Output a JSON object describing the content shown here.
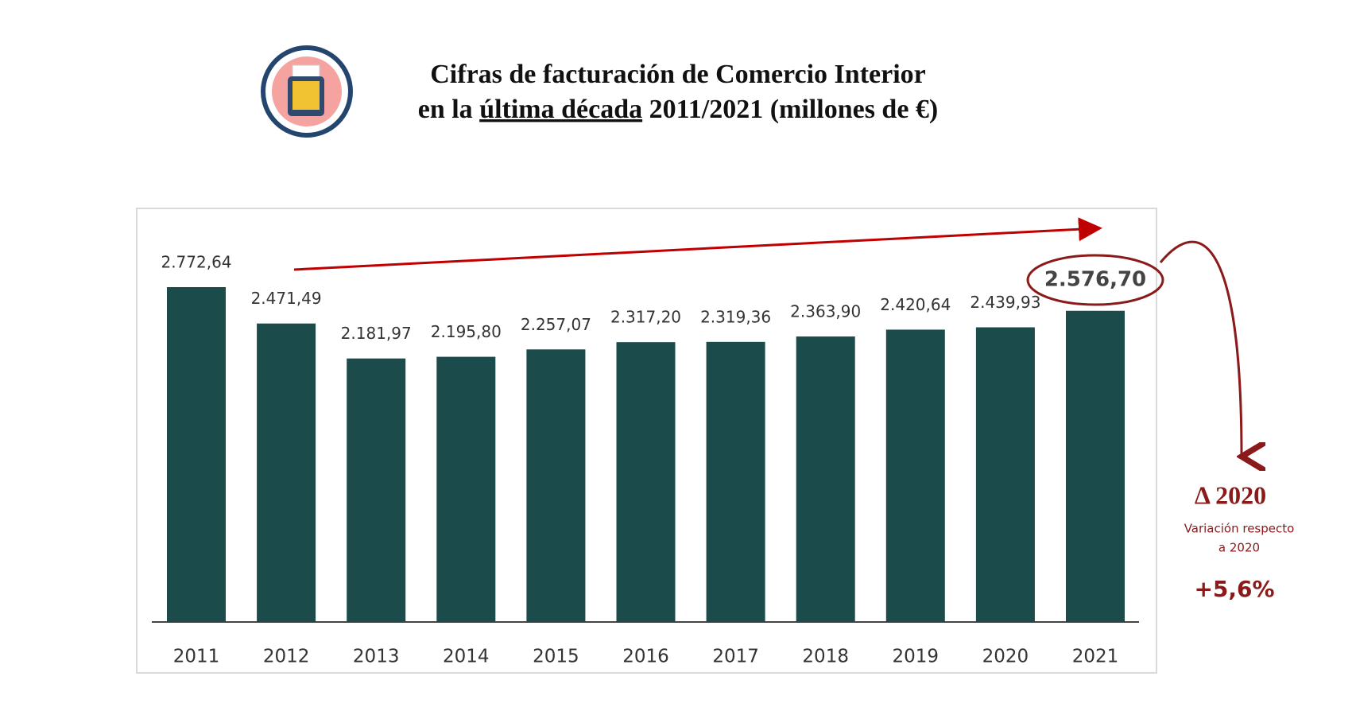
{
  "chart_data": {
    "type": "bar",
    "title_parts": [
      "Cifras de facturación de Comercio Interior",
      "en la",
      "última década",
      "2011/2021 (millones de €)"
    ],
    "categories": [
      "2011",
      "2012",
      "2013",
      "2014",
      "2015",
      "2016",
      "2017",
      "2018",
      "2019",
      "2020",
      "2021"
    ],
    "values": [
      2772.64,
      2471.49,
      2181.97,
      2195.8,
      2257.07,
      2317.2,
      2319.36,
      2363.9,
      2420.64,
      2439.93,
      2576.7
    ],
    "value_labels": [
      "2.772,64",
      "2.471,49",
      "2.181,97",
      "2.195,80",
      "2.257,07",
      "2.317,20",
      "2.319,36",
      "2.363,90",
      "2.420,64",
      "2.439,93",
      "2.576,70"
    ],
    "color": "#1b4b4b",
    "annotations": {
      "delta_title": "Δ 2020",
      "delta_line1": "Variación respecto",
      "delta_line2": "a 2020",
      "delta_value": "+5,6%"
    }
  }
}
